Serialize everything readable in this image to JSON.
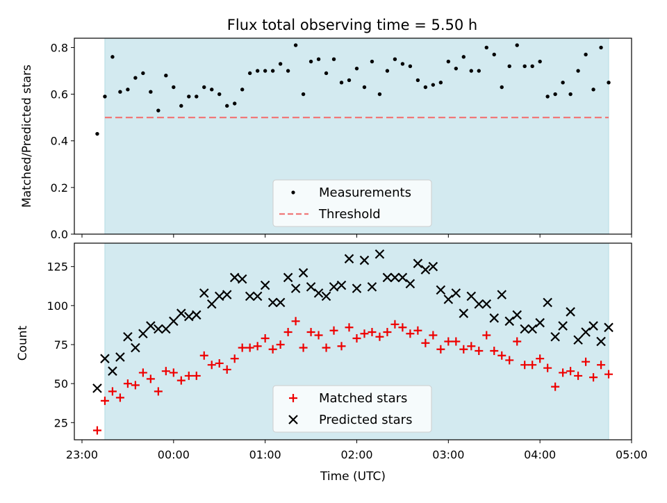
{
  "title": "Flux total observing time = 5.50 h",
  "colors": {
    "shade": "#d3eaf0",
    "measurement": "#000000",
    "threshold": "#f07878",
    "matched": "#ee0000",
    "predicted": "#000000"
  },
  "chart_data": [
    {
      "type": "scatter",
      "ylabel": "Matched/Predicted stars",
      "xlim": [
        "22:55",
        "05:00"
      ],
      "ylim": [
        0,
        0.84
      ],
      "yticks": [
        "0.0",
        "0.2",
        "0.4",
        "0.6",
        "0.8"
      ],
      "shaded_span": [
        "23:15",
        "04:45"
      ],
      "threshold": 0.5,
      "legend": {
        "placement": "lower-center",
        "entries": [
          "Measurements",
          "Threshold"
        ]
      },
      "series": [
        {
          "name": "Measurements",
          "x": [
            "23:10",
            "23:15",
            "23:20",
            "23:25",
            "23:30",
            "23:35",
            "23:40",
            "23:45",
            "23:50",
            "23:55",
            "00:00",
            "00:05",
            "00:10",
            "00:15",
            "00:20",
            "00:25",
            "00:30",
            "00:35",
            "00:40",
            "00:45",
            "00:50",
            "00:55",
            "01:00",
            "01:05",
            "01:10",
            "01:15",
            "01:20",
            "01:25",
            "01:30",
            "01:35",
            "01:40",
            "01:45",
            "01:50",
            "01:55",
            "02:00",
            "02:05",
            "02:10",
            "02:15",
            "02:20",
            "02:25",
            "02:30",
            "02:35",
            "02:40",
            "02:45",
            "02:50",
            "02:55",
            "03:00",
            "03:05",
            "03:10",
            "03:15",
            "03:20",
            "03:25",
            "03:30",
            "03:35",
            "03:40",
            "03:45",
            "03:50",
            "03:55",
            "04:00",
            "04:05",
            "04:10",
            "04:15",
            "04:20",
            "04:25",
            "04:30",
            "04:35",
            "04:40",
            "04:45"
          ],
          "values": [
            0.43,
            0.59,
            0.76,
            0.61,
            0.62,
            0.67,
            0.69,
            0.61,
            0.53,
            0.68,
            0.63,
            0.55,
            0.59,
            0.59,
            0.63,
            0.62,
            0.6,
            0.55,
            0.56,
            0.62,
            0.69,
            0.7,
            0.7,
            0.7,
            0.73,
            0.7,
            0.81,
            0.6,
            0.74,
            0.75,
            0.69,
            0.75,
            0.65,
            0.66,
            0.71,
            0.63,
            0.74,
            0.6,
            0.7,
            0.75,
            0.73,
            0.72,
            0.66,
            0.63,
            0.64,
            0.65,
            0.74,
            0.71,
            0.76,
            0.7,
            0.7,
            0.8,
            0.77,
            0.63,
            0.72,
            0.81,
            0.72,
            0.72,
            0.74,
            0.59,
            0.6,
            0.65,
            0.6,
            0.7,
            0.77,
            0.62,
            0.8,
            0.65
          ]
        }
      ]
    },
    {
      "type": "scatter",
      "xlabel": "Time (UTC)",
      "ylabel": "Count",
      "xlim": [
        "22:55",
        "05:00"
      ],
      "ylim": [
        14,
        140
      ],
      "xticks": [
        "23:00",
        "00:00",
        "01:00",
        "02:00",
        "03:00",
        "04:00",
        "05:00"
      ],
      "yticks": [
        "25",
        "50",
        "75",
        "100",
        "125"
      ],
      "shaded_span": [
        "23:15",
        "04:45"
      ],
      "legend": {
        "placement": "lower-center",
        "entries": [
          "Matched stars",
          "Predicted stars"
        ]
      },
      "x": [
        "23:10",
        "23:15",
        "23:20",
        "23:25",
        "23:30",
        "23:35",
        "23:40",
        "23:45",
        "23:50",
        "23:55",
        "00:00",
        "00:05",
        "00:10",
        "00:15",
        "00:20",
        "00:25",
        "00:30",
        "00:35",
        "00:40",
        "00:45",
        "00:50",
        "00:55",
        "01:00",
        "01:05",
        "01:10",
        "01:15",
        "01:20",
        "01:25",
        "01:30",
        "01:35",
        "01:40",
        "01:45",
        "01:50",
        "01:55",
        "02:00",
        "02:05",
        "02:10",
        "02:15",
        "02:20",
        "02:25",
        "02:30",
        "02:35",
        "02:40",
        "02:45",
        "02:50",
        "02:55",
        "03:00",
        "03:05",
        "03:10",
        "03:15",
        "03:20",
        "03:25",
        "03:30",
        "03:35",
        "03:40",
        "03:45",
        "03:50",
        "03:55",
        "04:00",
        "04:05",
        "04:10",
        "04:15",
        "04:20",
        "04:25",
        "04:30",
        "04:35",
        "04:40",
        "04:45"
      ],
      "series": [
        {
          "name": "Matched stars",
          "values": [
            20,
            39,
            45,
            41,
            50,
            49,
            57,
            53,
            45,
            58,
            57,
            52,
            55,
            55,
            68,
            62,
            63,
            59,
            66,
            73,
            73,
            74,
            79,
            72,
            75,
            83,
            90,
            73,
            83,
            81,
            73,
            84,
            74,
            86,
            79,
            82,
            83,
            80,
            83,
            88,
            86,
            82,
            84,
            76,
            81,
            72,
            77,
            77,
            72,
            74,
            71,
            81,
            71,
            68,
            65,
            77,
            62,
            62,
            66,
            60,
            48,
            57,
            58,
            55,
            64,
            54,
            62,
            56
          ]
        },
        {
          "name": "Predicted stars",
          "values": [
            47,
            66,
            58,
            67,
            80,
            73,
            82,
            87,
            85,
            85,
            90,
            95,
            93,
            94,
            108,
            101,
            106,
            107,
            118,
            117,
            106,
            106,
            113,
            102,
            102,
            118,
            111,
            121,
            112,
            108,
            106,
            112,
            113,
            130,
            111,
            129,
            112,
            133,
            118,
            118,
            118,
            114,
            127,
            123,
            125,
            110,
            104,
            108,
            95,
            106,
            101,
            101,
            92,
            107,
            90,
            94,
            85,
            85,
            89,
            102,
            80,
            87,
            96,
            78,
            83,
            87,
            77,
            86
          ]
        }
      ]
    }
  ]
}
